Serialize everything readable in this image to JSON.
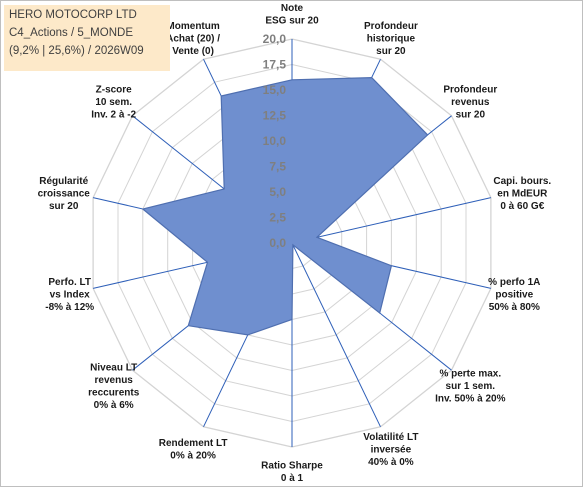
{
  "header": {
    "title_lines": [
      "HERO MOTOCORP LTD",
      "C4_Actions / 5_MONDE",
      "(9,2% | 25,6%) / 2026W09"
    ]
  },
  "colors": {
    "fill": "#6f8fcf",
    "stroke": "#4f6fb0",
    "spokes": "#2e5fb8",
    "rings": "#d4d4d4",
    "title_bg": "#fde9c9"
  },
  "chart_data": {
    "type": "radar",
    "title": "",
    "rmin": 0,
    "rmax": 20,
    "ticks": [
      "0,0",
      "2,5",
      "5,0",
      "7,5",
      "10,0",
      "12,5",
      "15,0",
      "17,5",
      "20,0"
    ],
    "tick_values": [
      0,
      2.5,
      5,
      7.5,
      10,
      12.5,
      15,
      17.5,
      20
    ],
    "grid": true,
    "axes": [
      {
        "label": [
          "Note",
          "ESG sur 20"
        ],
        "value": 16
      },
      {
        "label": [
          "Profondeur",
          "historique",
          "sur 20"
        ],
        "value": 18
      },
      {
        "label": [
          "Profondeur",
          "revenus",
          "sur 20"
        ],
        "value": 17
      },
      {
        "label": [
          "Capi. bours.",
          "en MdEUR",
          "0 à 60 G€"
        ],
        "value": 2.5
      },
      {
        "label": [
          "% perfo 1A",
          "positive",
          "50% à 80%"
        ],
        "value": 10
      },
      {
        "label": [
          "% perte max.",
          "sur 1 sem.",
          "Inv. 50% à 20%"
        ],
        "value": 11
      },
      {
        "label": [
          "Volatilité LT",
          "inversée",
          "40% à 0%"
        ],
        "value": 0.2
      },
      {
        "label": [
          "Ratio Sharpe",
          "0 à 1"
        ],
        "value": 7.5
      },
      {
        "label": [
          "Rendement LT",
          "0% à 20%"
        ],
        "value": 10
      },
      {
        "label": [
          "Niveau LT",
          "revenus",
          "reccurents",
          "0% à 6%"
        ],
        "value": 13
      },
      {
        "label": [
          "Perfo. LT",
          "vs Index",
          "-8% à 12%"
        ],
        "value": 8.5
      },
      {
        "label": [
          "Régularité",
          "croissance",
          "sur 20"
        ],
        "value": 15
      },
      {
        "label": [
          "Z-score",
          "10 sem.",
          "Inv. 2 à -2"
        ],
        "value": 8.5
      },
      {
        "label": [
          "Momentum",
          "Achat (20) /",
          "Vente (0)"
        ],
        "value": 16
      }
    ]
  }
}
